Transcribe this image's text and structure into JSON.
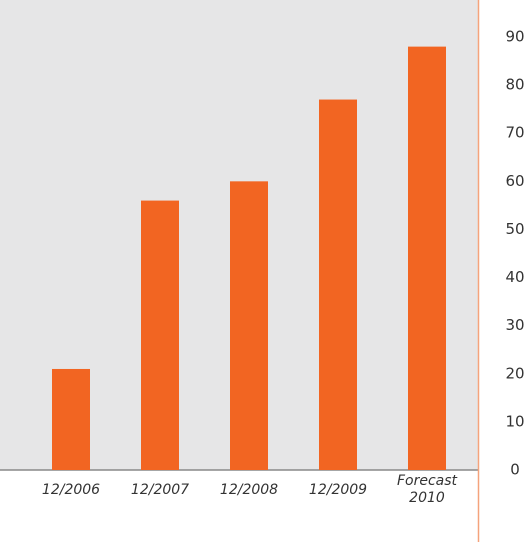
{
  "chart_data": {
    "type": "bar",
    "categories": [
      "12/2006",
      "12/2007",
      "12/2008",
      "12/2009",
      "Forecast 2010"
    ],
    "values": [
      21,
      56,
      60,
      77,
      88
    ],
    "color": "#f26522",
    "ylim": [
      0,
      90
    ],
    "yticks": [
      0,
      10,
      20,
      30,
      40,
      50,
      60,
      70,
      80,
      90
    ],
    "grid": false,
    "y_axis_side": "right"
  }
}
